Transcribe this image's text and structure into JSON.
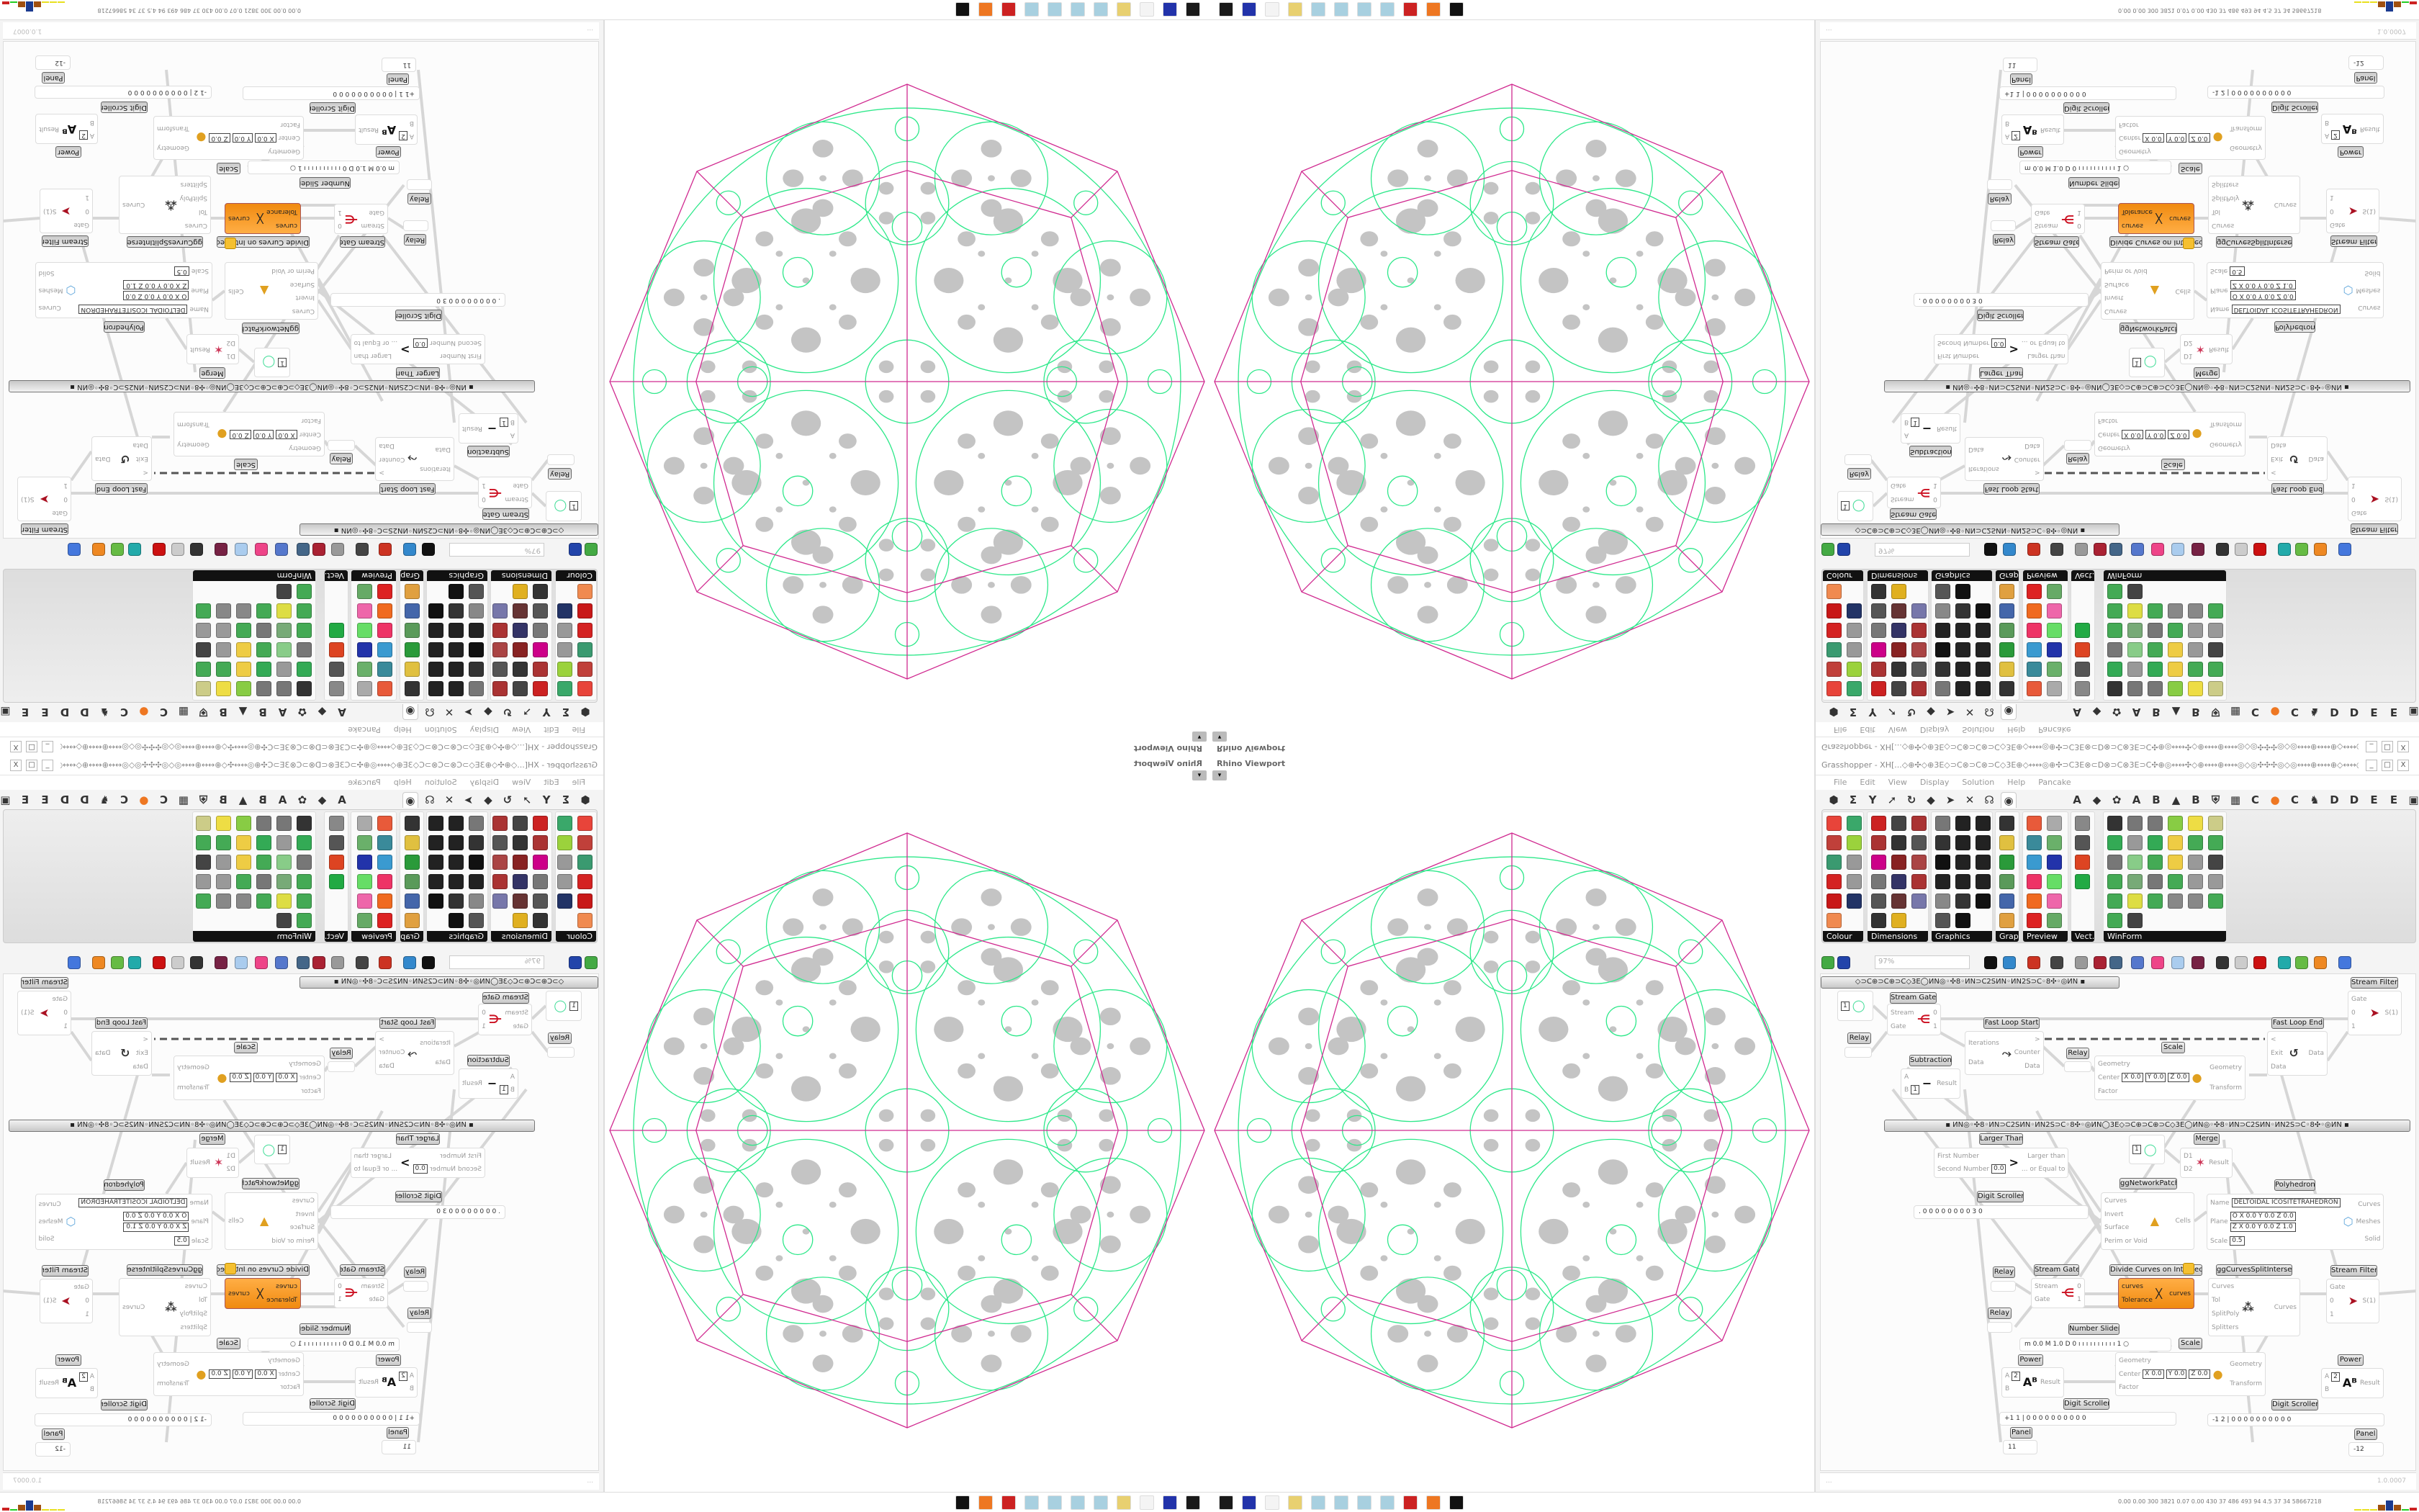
{
  "viewport": {
    "label": "Rhino Viewport",
    "menu_button": "▾"
  },
  "window": {
    "title": "Grasshopper - XH[...◇⊕✣◇⊕3E◇⊃C⊗⊃C⊗⊃C◇3E⊕◇↔↔◎⊕✣⊃C3E⊗⊂D⊗⊃C⊗3E⊃C✣⊕◎↔↔✣◇⊕↔↔⊕↔↔◎◇◎✣✣✣◎◇◎↔↔⊕↔↔⊕◇↔↔◎⊕✣⊃C3E⊗⊂D⊗⊕⊂D",
    "minimize": "_",
    "maximize": "□",
    "close": "X"
  },
  "menu": [
    "File",
    "Edit",
    "View",
    "Display",
    "Solution",
    "Help",
    "Pancake"
  ],
  "tabs": {
    "left": [
      "⬢",
      "Σ",
      "Y",
      "➚",
      "↻",
      "◆",
      "➤",
      "✕",
      "☊",
      "◉"
    ],
    "selected_index": 9,
    "right": [
      "A",
      "◆",
      "✿",
      "A",
      "B",
      "▲",
      "B",
      "⛨",
      "▦",
      "C",
      "●",
      "C",
      "♞",
      "D",
      "D",
      "E",
      "E",
      "▣"
    ]
  },
  "ribbon": {
    "panels": [
      {
        "label": "Colour",
        "cols": 2,
        "colors": [
          "#e8443a",
          "#3aa86a",
          "#c0403a",
          "#9bd23c",
          "#3a9a70",
          "#999999",
          "#d42222",
          "#999999",
          "#c81818",
          "#223366",
          "#f08a50"
        ]
      },
      {
        "label": "Dimensions",
        "cols": 3,
        "colors": [
          "#cc2222",
          "#444444",
          "#aa3333",
          "#aa3333",
          "#333333",
          "#555555",
          "#cc0088",
          "#882222",
          "#aa4444",
          "#777777",
          "#333366",
          "#aa3333",
          "#555555",
          "#663333",
          "#7777aa",
          "#333333",
          "#e0b020"
        ]
      },
      {
        "label": "Graphics",
        "cols": 3,
        "colors": [
          "#777777",
          "#222222",
          "#222222",
          "#333333",
          "#222222",
          "#222222",
          "#111111",
          "#222222",
          "#222222",
          "#222222",
          "#222222",
          "#222222",
          "#888888",
          "#333333",
          "#111111",
          "#555555",
          "#111111"
        ]
      },
      {
        "label": "Grap...",
        "cols": 1,
        "colors": [
          "#333333",
          "#e0c040",
          "#2a9a3a",
          "#5a9a5a",
          "#4466aa",
          "#e0a040"
        ]
      },
      {
        "label": "Preview",
        "cols": 2,
        "colors": [
          "#e85a3a",
          "#aaaaaa",
          "#3a8a9a",
          "#6ab06a",
          "#3a9ad0",
          "#2233aa",
          "#ee3366",
          "#66dd66",
          "#f06a20",
          "#ee66aa",
          "#dd2222",
          "#66aa66"
        ]
      },
      {
        "label": "Vect.",
        "cols": 1,
        "colors": [
          "#888888",
          "#555555",
          "#dd4422",
          "#22aa44"
        ]
      },
      {
        "label": "WinForm",
        "cols": 6,
        "colors": [
          "#333333",
          "#777777",
          "#777777",
          "#88cc44",
          "#eedd44",
          "#cccc88",
          "#33aa55",
          "#999999",
          "#33aa55",
          "#eecc44",
          "#44aa55",
          "#44aa55",
          "#777777",
          "#88cc88",
          "#44aa55",
          "#eecc44",
          "#999999",
          "#444444",
          "#44aa55",
          "#77aa77",
          "#777777",
          "#44aa55",
          "#999999",
          "#999999",
          "#44aa55",
          "#dddd44",
          "#44aa55",
          "#888888",
          "#888888",
          "#44aa55",
          "#44aa55",
          "#444444"
        ]
      }
    ]
  },
  "toolbar": {
    "zoom": "97%",
    "icons": [
      "#44aa44",
      "#2244aa",
      "#111111",
      "#3388cc",
      "#cc3322",
      "#444444",
      "#999999",
      "#aa2233",
      "#446688",
      "#5577cc",
      "#ee4488",
      "#aaccee",
      "#772244",
      "#333333",
      "#cccccc",
      "#cc1111",
      "#22aaaa",
      "#66bb44",
      "#ee8822",
      "#4477dd"
    ]
  },
  "canvas": {
    "groups": [
      "◇⊃C⊕⊃C⊕⊃C◇3E◯ИN◎◦✣8◦ИN⊃C2SИN◦ИN2S⊃C◦8✣◦◎ИN   ▪",
      "▪   ИN◎◦✣8◦ИN⊃C2SИN◦ИN2S⊃C◦8✣◦◎ИN◯3E◇⊃C⊕⊃C⊕⊃C◇3E◯ИN◎◦✣8◦ИN⊃C2SИN◦ИN2S⊃C◦8✣◦◎ИN   ▪"
    ],
    "nodes": [
      {
        "label": "Stream Filter",
        "inputs": [
          "Gate",
          "0",
          "1"
        ],
        "outputs": [
          "S(1)"
        ],
        "glyph": "➤",
        "glyph_color": "#aa1122"
      },
      {
        "label": "",
        "inputs": [],
        "outputs": [],
        "values": [
          "1"
        ],
        "glyph": "◯",
        "glyph_color": "#44dd99"
      },
      {
        "label": "Stream Gate",
        "inputs": [
          "Stream",
          "Gate"
        ],
        "outputs": [
          "0",
          "1"
        ],
        "glyph": "⋲",
        "glyph_color": "#cc1122"
      },
      {
        "label": "Relay",
        "inputs": [],
        "outputs": []
      },
      {
        "label": "Fast Loop Start",
        "inputs": [
          "Iterations",
          "Data"
        ],
        "outputs": [
          ">",
          "Counter",
          "Data"
        ],
        "glyph": "⤳",
        "glyph_color": "#333333"
      },
      {
        "label": "Subtraction",
        "inputs": [
          "A",
          "B"
        ],
        "outputs": [
          "Result"
        ],
        "values": [
          "1"
        ],
        "glyph": "−",
        "glyph_color": "#111111"
      },
      {
        "label": "Relay",
        "inputs": [],
        "outputs": []
      },
      {
        "label": "Scale",
        "inputs": [
          "Geometry",
          "Center",
          "Factor"
        ],
        "outputs": [
          "Geometry",
          "Transform"
        ],
        "values": [
          "X 0.0",
          "Y 0.0",
          "Z 0.0"
        ],
        "glyph": "●",
        "glyph_color": "#e0a020"
      },
      {
        "label": "Fast Loop End",
        "inputs": [
          "<",
          "Exit",
          "Data"
        ],
        "outputs": [
          "Data"
        ],
        "glyph": "↺",
        "glyph_color": "#333333"
      },
      {
        "label": "Larger Than",
        "inputs": [
          "First Number",
          "Second Number"
        ],
        "outputs": [
          "Larger than",
          "... or Equal to"
        ],
        "values": [
          "0.0"
        ],
        "glyph": ">",
        "glyph_color": "#111111"
      },
      {
        "label": "",
        "inputs": [],
        "outputs": [],
        "values": [
          "1"
        ],
        "glyph": "◯",
        "glyph_color": "#44dd99"
      },
      {
        "label": "Merge",
        "inputs": [
          "D1",
          "D2"
        ],
        "outputs": [
          "Result"
        ],
        "glyph": "✶",
        "glyph_color": "#cc3355"
      },
      {
        "label": "ggNetworkPatch",
        "inputs": [
          "Curves",
          "Invert",
          "Surface",
          "Perim or Void"
        ],
        "outputs": [
          "Cells"
        ],
        "glyph": "▲",
        "glyph_color": "#e0a020"
      },
      {
        "label": "Polyhedron",
        "inputs": [
          "Name",
          "Plane",
          "Scale"
        ],
        "outputs": [
          "Curves",
          "Meshes",
          "Solid"
        ],
        "values": [
          "DELTOIDAL ICOSITETRAHEDRON",
          "O X 0.0 Y 0.0 Z 0.0",
          "Z X 0.0 Y 0.0 Z 1.0",
          "0.5"
        ],
        "glyph": "⬡",
        "glyph_color": "#66aadd"
      },
      {
        "label": "Digit Scroller",
        "inputs": [],
        "outputs": [],
        "values": [
          ". 0 0 0 0 0 0 0 0 3 0"
        ]
      },
      {
        "label": "Relay",
        "inputs": [],
        "outputs": []
      },
      {
        "label": "Stream Gate",
        "inputs": [
          "Stream",
          "Gate"
        ],
        "outputs": [
          "0",
          "1"
        ],
        "glyph": "⋲",
        "glyph_color": "#cc1122"
      },
      {
        "label": "Divide Curves on Intersections",
        "inputs": [
          "curves",
          "Tolerance"
        ],
        "outputs": [
          "curves"
        ],
        "glyph": "ᚷ",
        "glyph_color": "#222222",
        "orange": true
      },
      {
        "label": "ggCurvesSplitIntersect",
        "inputs": [
          "Curves",
          "Tol",
          "SplitPoly",
          "Splitters"
        ],
        "outputs": [
          "Curves"
        ],
        "glyph": "⁂",
        "glyph_color": "#333333"
      },
      {
        "label": "Stream Filter",
        "inputs": [
          "Gate",
          "0",
          "1"
        ],
        "outputs": [
          "S(1)"
        ],
        "glyph": "➤",
        "glyph_color": "#aa1122"
      },
      {
        "label": "Relay",
        "inputs": [],
        "outputs": []
      },
      {
        "label": "Number Slider",
        "inputs": [],
        "outputs": [],
        "values": [
          "m 0.0  M 1.0  D 0   ı ı ı ı ı ı ı ı ı ı 1 ○"
        ]
      },
      {
        "label": "Scale",
        "inputs": [
          "Geometry",
          "Center",
          "Factor"
        ],
        "outputs": [
          "Geometry",
          "Transform"
        ],
        "values": [
          "X 0.0",
          "Y 0.0",
          "Z 0.0"
        ],
        "glyph": "●",
        "glyph_color": "#e0a020"
      },
      {
        "label": "Power",
        "inputs": [
          "A",
          "B"
        ],
        "outputs": [
          "Result"
        ],
        "values": [
          "2"
        ],
        "glyph": "Aᴮ",
        "glyph_color": "#111111"
      },
      {
        "label": "Power",
        "inputs": [
          "A",
          "B"
        ],
        "outputs": [
          "Result"
        ],
        "values": [
          "2"
        ],
        "glyph": "Aᴮ",
        "glyph_color": "#111111"
      },
      {
        "label": "Digit Scroller",
        "inputs": [],
        "outputs": [],
        "values": [
          "+1 1 | 0 0 0 0 0 0 0 0 0 0"
        ]
      },
      {
        "label": "Digit Scroller",
        "inputs": [],
        "outputs": [],
        "values": [
          "-1 2 | 0 0 0 0 0 0 0 0 0 0"
        ]
      },
      {
        "label": "Panel",
        "inputs": [],
        "outputs": [],
        "values": [
          "11"
        ]
      },
      {
        "label": "Panel",
        "inputs": [],
        "outputs": [],
        "values": [
          "-12"
        ]
      }
    ]
  },
  "status": {
    "left": "...",
    "version": "1.0.0007"
  },
  "taskbar": {
    "icons": [
      "#1a1a1a",
      "#2233aa",
      "#f4f4f4",
      "#e8d070",
      "#a8d0e0",
      "#a8d0e0",
      "#a8d0e0",
      "#a8d0e0",
      "#cc2222",
      "#ee7722",
      "#111111"
    ],
    "stats": "0.00 0.00 300 3821 0.07 0.00 430 37 486 493 94 4.5 37 34 58667218",
    "bar_colors": [
      "#e8e020",
      "#e8e020",
      "#e8e020",
      "#a05010",
      "#1a3a90",
      "#a05010",
      "#22cc22",
      "#cc2222"
    ]
  },
  "colors": {
    "wireframe_outer": "#d02a90",
    "wireframe_circles": "#2ee88a",
    "hole": "#c4c4c4",
    "component_selected": "#f08a10"
  }
}
